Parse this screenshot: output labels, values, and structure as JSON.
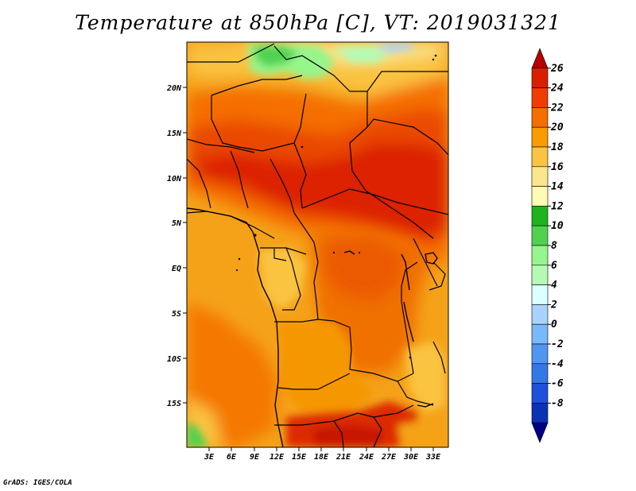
{
  "title": "Temperature at 850hPa [C], VT: 2019031321",
  "footer": "GrADS: IGES/COLA",
  "map": {
    "projection": "lat-lon",
    "lon_range": [
      0,
      35
    ],
    "lat_range": [
      -20,
      25
    ],
    "lat_ticks": [
      "20N",
      "15N",
      "10N",
      "5N",
      "EQ",
      "5S",
      "10S",
      "15S"
    ],
    "lon_ticks": [
      "3E",
      "6E",
      "9E",
      "12E",
      "15E",
      "18E",
      "21E",
      "24E",
      "27E",
      "30E",
      "33E"
    ]
  },
  "colorbar": {
    "labels": [
      "26",
      "24",
      "22",
      "20",
      "18",
      "16",
      "14",
      "12",
      "10",
      "8",
      "6",
      "4",
      "2",
      "0",
      "-2",
      "-4",
      "-6",
      "-8"
    ],
    "colors": [
      "#b40000",
      "#dc1e00",
      "#f03c00",
      "#f56e00",
      "#fa9b00",
      "#fac341",
      "#fae68c",
      "#fffab4",
      "#1eb41e",
      "#50d250",
      "#96f58c",
      "#b4fab4",
      "#dcffff",
      "#aad2ff",
      "#78b9fa",
      "#5096f0",
      "#3278e6",
      "#1e50dc",
      "#0a32b4",
      "#000082"
    ]
  }
}
